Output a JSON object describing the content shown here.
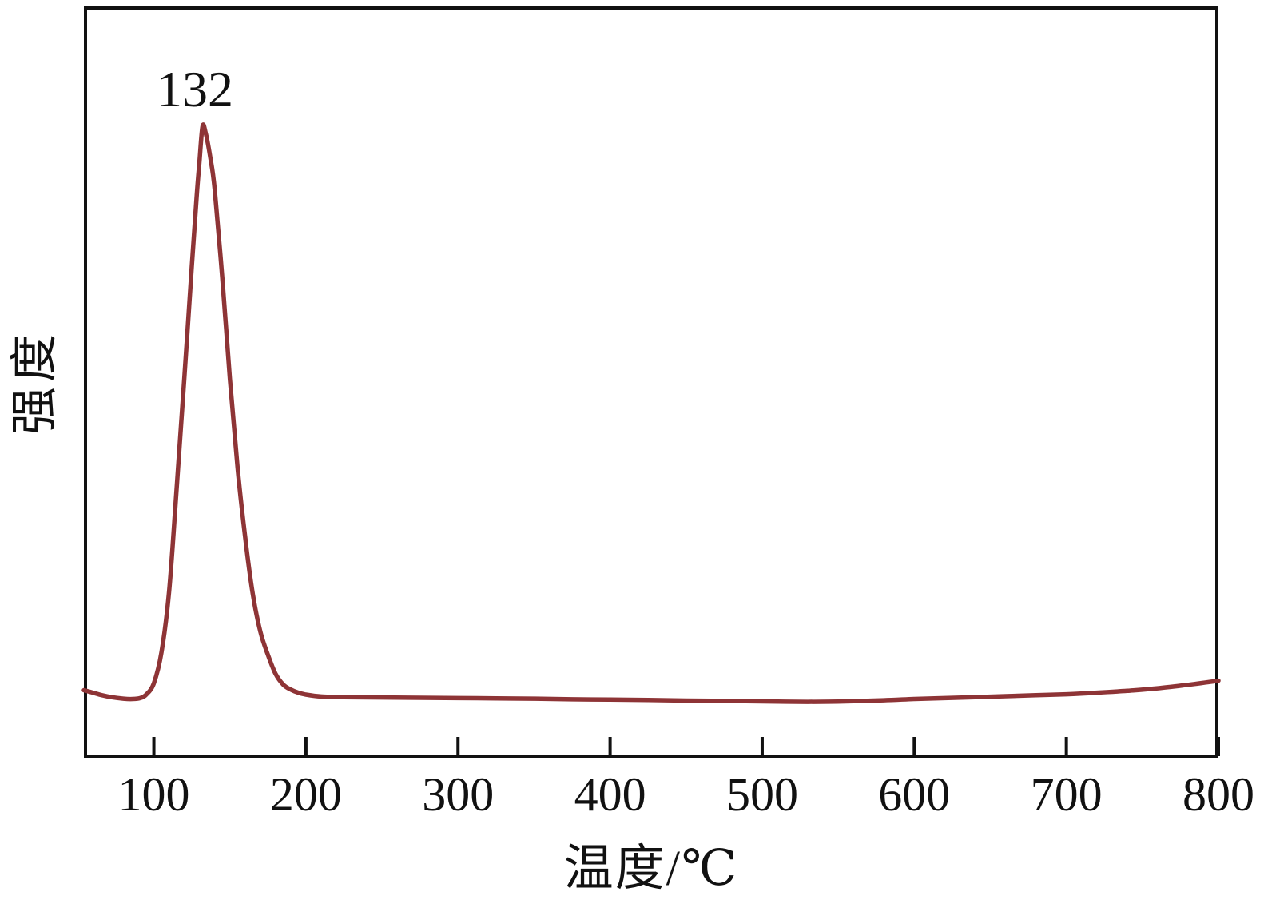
{
  "figure": {
    "background_color": "#ffffff"
  },
  "chart_data": {
    "type": "line",
    "title": "",
    "xlabel": "温度/℃",
    "ylabel": "强度",
    "x_ticks": [
      100,
      200,
      300,
      400,
      500,
      600,
      700,
      800
    ],
    "xlim": [
      54,
      800
    ],
    "ylim": [
      0,
      1.19
    ],
    "grid": false,
    "legend": "none",
    "axis_color": "#111111",
    "line_color": "#8e3436",
    "line_width": 5.5,
    "tick_direction": "in",
    "peak_annotation": {
      "label": "132",
      "temperature_c": 132,
      "relative_intensity": 1.0
    },
    "series": [
      {
        "name": "desorption-signal",
        "x_unit": "°C",
        "y_unit": "a.u.",
        "points": [
          [
            54,
            0.107
          ],
          [
            60,
            0.103
          ],
          [
            66,
            0.099
          ],
          [
            72,
            0.096
          ],
          [
            80,
            0.0935
          ],
          [
            86,
            0.093
          ],
          [
            91,
            0.0945
          ],
          [
            95,
            0.1
          ],
          [
            100,
            0.118
          ],
          [
            105,
            0.167
          ],
          [
            110,
            0.263
          ],
          [
            115,
            0.427
          ],
          [
            120,
            0.6
          ],
          [
            125,
            0.78
          ],
          [
            128,
            0.885
          ],
          [
            130,
            0.945
          ],
          [
            132,
            1.0
          ],
          [
            134,
            0.99
          ],
          [
            137,
            0.952
          ],
          [
            140,
            0.9
          ],
          [
            145,
            0.76
          ],
          [
            150,
            0.6
          ],
          [
            155,
            0.46
          ],
          [
            160,
            0.35
          ],
          [
            165,
            0.26
          ],
          [
            170,
            0.2
          ],
          [
            175,
            0.163
          ],
          [
            180,
            0.133
          ],
          [
            185,
            0.116
          ],
          [
            190,
            0.108
          ],
          [
            195,
            0.103
          ],
          [
            200,
            0.1
          ],
          [
            210,
            0.097
          ],
          [
            225,
            0.096
          ],
          [
            250,
            0.0955
          ],
          [
            275,
            0.095
          ],
          [
            300,
            0.0945
          ],
          [
            325,
            0.094
          ],
          [
            350,
            0.0935
          ],
          [
            375,
            0.0925
          ],
          [
            400,
            0.092
          ],
          [
            425,
            0.0915
          ],
          [
            450,
            0.0905
          ],
          [
            475,
            0.09
          ],
          [
            500,
            0.0893
          ],
          [
            515,
            0.0888
          ],
          [
            530,
            0.0885
          ],
          [
            545,
            0.0888
          ],
          [
            560,
            0.0895
          ],
          [
            580,
            0.091
          ],
          [
            600,
            0.093
          ],
          [
            620,
            0.0945
          ],
          [
            640,
            0.096
          ],
          [
            660,
            0.0975
          ],
          [
            680,
            0.099
          ],
          [
            700,
            0.1005
          ],
          [
            720,
            0.103
          ],
          [
            740,
            0.106
          ],
          [
            760,
            0.11
          ],
          [
            780,
            0.1155
          ],
          [
            800,
            0.122
          ]
        ]
      }
    ]
  }
}
